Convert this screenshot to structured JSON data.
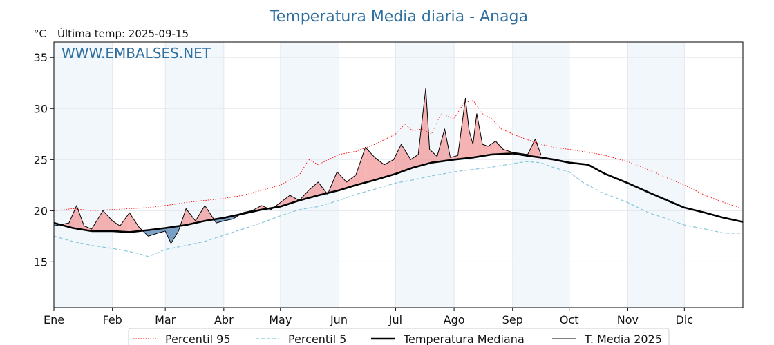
{
  "chart_data": {
    "type": "line",
    "title": "Temperatura Media diaria - Anaga",
    "yunit": "°C",
    "last_temp_label": "Última temp: 2025-09-15",
    "watermark": "WWW.EMBALSES.NET",
    "ylim": [
      10.5,
      36.5
    ],
    "yticks": [
      15,
      20,
      25,
      30,
      35
    ],
    "xlim": [
      0,
      365
    ],
    "months": [
      "Ene",
      "Feb",
      "Mar",
      "Abr",
      "May",
      "Jun",
      "Jul",
      "Ago",
      "Sep",
      "Oct",
      "Nov",
      "Dic"
    ],
    "month_starts": [
      0,
      31,
      59,
      90,
      120,
      151,
      181,
      212,
      243,
      273,
      304,
      334
    ],
    "grid": true,
    "legend_position": "bottom",
    "colors": {
      "p95": "#ff0000",
      "p5": "#87c6d9",
      "median": "#000000",
      "current": "#000000",
      "above": "#f08080",
      "below": "#4f81b0",
      "band": "#f2f7fc",
      "text": "#2f6f9f"
    },
    "series": [
      {
        "name": "Percentil 95",
        "style": "dotted",
        "x": [
          0,
          10,
          20,
          31,
          40,
          50,
          59,
          70,
          80,
          90,
          100,
          110,
          120,
          130,
          135,
          140,
          151,
          160,
          170,
          181,
          186,
          190,
          195,
          200,
          205,
          212,
          217,
          222,
          227,
          232,
          237,
          243,
          250,
          258,
          265,
          273,
          280,
          290,
          304,
          315,
          325,
          334,
          345,
          355,
          365
        ],
        "y": [
          20,
          20.2,
          20,
          20.1,
          20.2,
          20.3,
          20.5,
          20.8,
          21,
          21.2,
          21.5,
          22,
          22.5,
          23.5,
          25,
          24.5,
          25.5,
          25.8,
          26.5,
          27.5,
          28.5,
          27.8,
          28,
          27.5,
          29.5,
          29,
          30.5,
          30.8,
          29.5,
          29,
          28,
          27.5,
          27,
          26.5,
          26.2,
          26,
          25.8,
          25.5,
          24.8,
          24,
          23.2,
          22.5,
          21.5,
          20.8,
          20.2
        ]
      },
      {
        "name": "Percentil 5",
        "style": "dashed",
        "x": [
          0,
          10,
          20,
          31,
          40,
          45,
          50,
          59,
          70,
          80,
          90,
          100,
          110,
          120,
          130,
          140,
          151,
          160,
          170,
          181,
          190,
          200,
          212,
          220,
          230,
          243,
          250,
          258,
          265,
          273,
          280,
          290,
          304,
          315,
          325,
          334,
          345,
          355,
          365
        ],
        "y": [
          17.5,
          17,
          16.6,
          16.3,
          16,
          15.8,
          15.5,
          16.2,
          16.6,
          17,
          17.6,
          18.2,
          18.8,
          19.5,
          20.1,
          20.4,
          21,
          21.6,
          22.1,
          22.7,
          23,
          23.4,
          23.8,
          24,
          24.2,
          24.6,
          24.8,
          24.7,
          24.2,
          23.8,
          22.8,
          21.8,
          20.8,
          19.8,
          19.2,
          18.6,
          18.2,
          17.8,
          17.8
        ]
      },
      {
        "name": "Temperatura Mediana",
        "style": "solid-thick",
        "x": [
          0,
          10,
          20,
          31,
          40,
          50,
          59,
          70,
          80,
          90,
          100,
          110,
          120,
          130,
          140,
          151,
          160,
          170,
          181,
          190,
          200,
          212,
          222,
          232,
          243,
          250,
          258,
          265,
          273,
          283,
          292,
          304,
          315,
          325,
          334,
          345,
          355,
          365
        ],
        "y": [
          18.8,
          18.3,
          18,
          18,
          17.9,
          18.1,
          18.3,
          18.6,
          19,
          19.3,
          19.7,
          20.1,
          20.4,
          21,
          21.5,
          22,
          22.5,
          23,
          23.6,
          24.2,
          24.7,
          25,
          25.2,
          25.5,
          25.6,
          25.4,
          25.2,
          25,
          24.7,
          24.5,
          23.6,
          22.7,
          21.8,
          21,
          20.3,
          19.8,
          19.3,
          18.9
        ]
      },
      {
        "name": "T. Media 2025",
        "style": "solid-thin",
        "x": [
          0,
          8,
          12,
          16,
          20,
          26,
          31,
          35,
          40,
          45,
          50,
          55,
          59,
          62,
          66,
          70,
          75,
          80,
          86,
          90,
          95,
          100,
          105,
          110,
          115,
          120,
          125,
          130,
          135,
          140,
          145,
          150,
          155,
          160,
          165,
          170,
          175,
          180,
          184,
          189,
          193,
          197,
          199,
          203,
          207,
          210,
          214,
          218,
          220,
          222,
          224,
          227,
          230,
          234,
          238,
          243,
          247,
          251,
          255,
          258
        ],
        "y": [
          18.5,
          18.8,
          20.5,
          18.5,
          18.2,
          20,
          19,
          18.5,
          19.8,
          18.4,
          17.5,
          17.8,
          18,
          16.8,
          18,
          20.2,
          19,
          20.5,
          18.8,
          19,
          19.2,
          19.8,
          20,
          20.5,
          20.1,
          20.8,
          21.5,
          21,
          22,
          22.8,
          21.6,
          23.8,
          22.8,
          23.5,
          26.2,
          25.2,
          24.5,
          25,
          26.5,
          25,
          25.5,
          32,
          26,
          25.3,
          28,
          25.2,
          25.4,
          31,
          27.8,
          26.5,
          29.5,
          26.5,
          26.3,
          26.8,
          26,
          25.7,
          25.6,
          25.5,
          27,
          25.5
        ]
      }
    ]
  }
}
